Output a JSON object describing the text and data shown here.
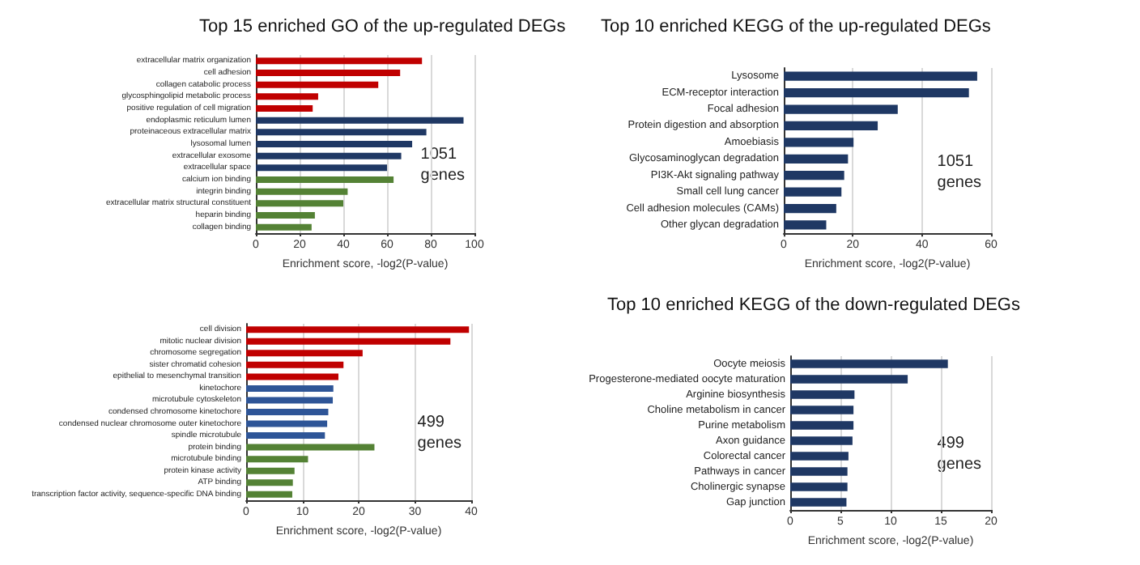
{
  "chart_data": [
    {
      "type": "bar",
      "orientation": "horizontal",
      "title": "Top 15 enriched GO of the up-regulated DEGs",
      "xlabel": "Enrichment score, -log2(P-value)",
      "categories": [
        "extracellular matrix organization",
        "cell adhesion",
        "collagen catabolic process",
        "glycosphingolipid metabolic process",
        "positive regulation of cell migration",
        "endoplasmic reticulum lumen",
        "proteinaceous extracellular matrix",
        "lysosomal lumen",
        "extracellular exosome",
        "extracellular space",
        "calcium ion binding",
        "integrin binding",
        "extracellular matrix structural constituent",
        "heparin binding",
        "collagen binding"
      ],
      "values": [
        76,
        66,
        56,
        28.5,
        26,
        95,
        78,
        71.5,
        66.5,
        60,
        63,
        42,
        40,
        27,
        25.5
      ],
      "colors": [
        "#c00000",
        "#c00000",
        "#c00000",
        "#c00000",
        "#c00000",
        "#1f3864",
        "#1f3864",
        "#1f3864",
        "#1f3864",
        "#1f3864",
        "#548235",
        "#548235",
        "#548235",
        "#548235",
        "#548235"
      ],
      "xlim": [
        0,
        100
      ],
      "xticks": [
        0,
        20,
        40,
        60,
        80,
        100
      ],
      "grid": "x",
      "annotations": [
        "1051\ngenes"
      ]
    },
    {
      "type": "bar",
      "orientation": "horizontal",
      "xlabel": "Enrichment score, -log2(P-value)",
      "categories": [
        "cell division",
        "mitotic nuclear division",
        "chromosome segregation",
        "sister chromatid cohesion",
        "epithelial to mesenchymal transition",
        "kinetochore",
        "microtubule cytoskeleton",
        "condensed chromosome kinetochore",
        "condensed nuclear chromosome outer kinetochore",
        "spindle microtubule",
        "protein binding",
        "microtubule binding",
        "protein kinase activity",
        "ATP binding",
        "transcription factor activity, sequence-specific DNA binding"
      ],
      "values": [
        39.6,
        36.3,
        20.7,
        17.3,
        16.4,
        15.5,
        15.4,
        14.6,
        14.4,
        14,
        22.8,
        11,
        8.6,
        8.3,
        8.2
      ],
      "colors": [
        "#c00000",
        "#c00000",
        "#c00000",
        "#c00000",
        "#c00000",
        "#2e5597",
        "#2e5597",
        "#2e5597",
        "#2e5597",
        "#2e5597",
        "#548235",
        "#548235",
        "#548235",
        "#548235",
        "#548235"
      ],
      "xlim": [
        0,
        40
      ],
      "xticks": [
        0,
        10,
        20,
        30,
        40
      ],
      "grid": "x",
      "annotations": [
        "499\ngenes"
      ]
    },
    {
      "type": "bar",
      "orientation": "horizontal",
      "title": "Top 10 enriched KEGG of the up-regulated DEGs",
      "xlabel": "Enrichment score, -log2(P-value)",
      "categories": [
        "Lysosome",
        "ECM-receptor interaction",
        "Focal adhesion",
        "Protein digestion and absorption",
        "Amoebiasis",
        "Glycosaminoglycan degradation",
        "PI3K-Akt signaling pathway",
        "Small cell lung cancer",
        "Cell adhesion molecules (CAMs)",
        "Other glycan degradation"
      ],
      "values": [
        56,
        53.6,
        33,
        27.2,
        20.2,
        18.6,
        17.5,
        16.7,
        15.2,
        12.3
      ],
      "colors": [
        "#1f3864",
        "#1f3864",
        "#1f3864",
        "#1f3864",
        "#1f3864",
        "#1f3864",
        "#1f3864",
        "#1f3864",
        "#1f3864",
        "#1f3864"
      ],
      "xlim": [
        0,
        60
      ],
      "xticks": [
        0,
        20,
        40,
        60
      ],
      "grid": "x",
      "annotations": [
        "1051\ngenes"
      ]
    },
    {
      "type": "bar",
      "orientation": "horizontal",
      "title": "Top 10 enriched KEGG of the down-regulated DEGs",
      "xlabel": "Enrichment score, -log2(P-value)",
      "categories": [
        "Oocyte meiosis",
        "Progesterone-mediated oocyte maturation",
        "Arginine biosynthesis",
        "Choline metabolism in cancer",
        "Purine metabolism",
        "Axon guidance",
        "Colorectal cancer",
        "Pathways in cancer",
        "Cholinergic synapse",
        "Gap junction"
      ],
      "values": [
        15.7,
        11.7,
        6.4,
        6.3,
        6.3,
        6.2,
        5.8,
        5.7,
        5.7,
        5.6
      ],
      "colors": [
        "#1f3864",
        "#1f3864",
        "#1f3864",
        "#1f3864",
        "#1f3864",
        "#1f3864",
        "#1f3864",
        "#1f3864",
        "#1f3864",
        "#1f3864"
      ],
      "xlim": [
        0,
        20
      ],
      "xticks": [
        0,
        5,
        10,
        15,
        20
      ],
      "grid": "x",
      "annotations": [
        "499\ngenes"
      ]
    }
  ]
}
